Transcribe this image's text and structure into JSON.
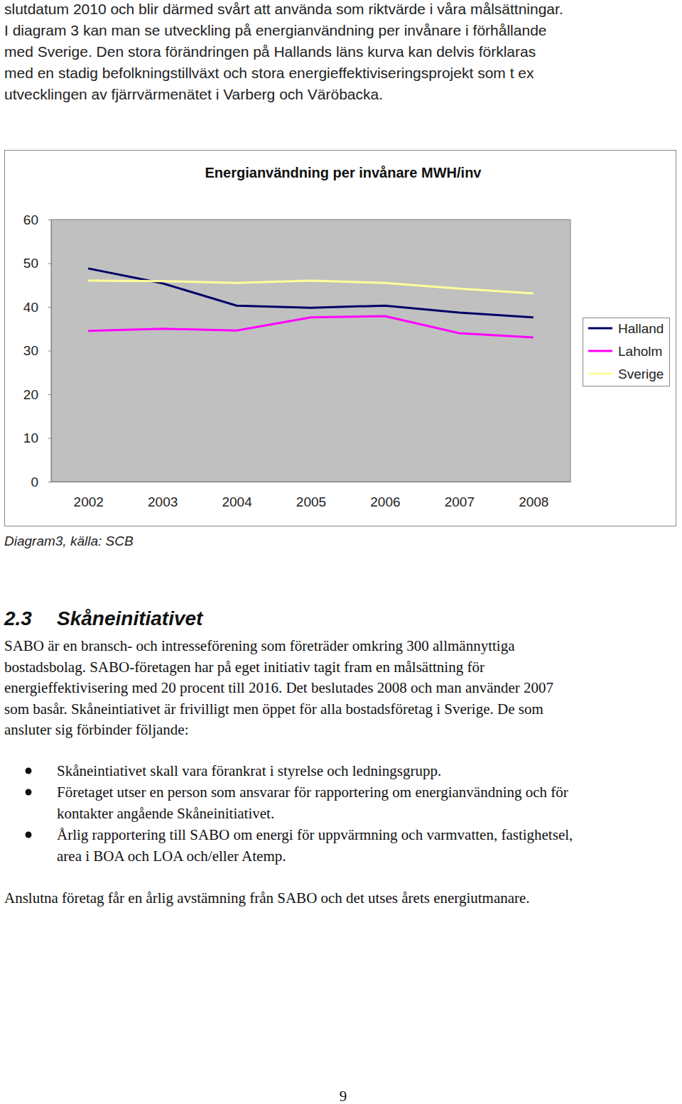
{
  "page": {
    "intro_lines": [
      "slutdatum 2010 och blir därmed svårt att använda som riktvärde i våra målsättningar.",
      "I diagram 3 kan man se utveckling på energianvändning per invånare i förhållande",
      "med Sverige. Den stora förändringen på Hallands läns kurva kan delvis förklaras",
      "med en stadig befolkningstillväxt och stora energieffektiviseringsprojekt som t ex",
      "utvecklingen av fjärrvärmenätet i Varberg och Väröbacka."
    ],
    "caption": "Diagram3, källa: SCB",
    "section": {
      "number": "2.3",
      "title": "Skåneinitiativet"
    },
    "paragraph_lines": [
      "SABO är en bransch- och intresseförening som företräder omkring 300 allmännyttiga",
      "bostadsbolag. SABO-företagen har på eget initiativ tagit fram en målsättning för",
      "energieffektivisering med 20 procent till 2016. Det beslutades 2008 och man använder 2007",
      "som basår. Skåneintiativet är frivilligt men öppet för alla bostadsföretag i Sverige. De som",
      "ansluter sig förbinder följande:"
    ],
    "bullets": [
      [
        "Skåneintiativet skall vara förankrat i styrelse och ledningsgrupp."
      ],
      [
        "Företaget utser en person som ansvarar för rapportering om energianvändning och för",
        "kontakter angående Skåneinitiativet."
      ],
      [
        "Årlig rapportering till SABO om energi för uppvärmning och varmvatten, fastighetsel,",
        "area i BOA och LOA och/eller Atemp."
      ]
    ],
    "closing": "Anslutna företag får en årlig avstämning från SABO och det utses årets energiutmanare.",
    "page_number": "9"
  },
  "chart_data": {
    "type": "line",
    "title": "Energianvändning per invånare MWH/inv",
    "categories": [
      "2002",
      "2003",
      "2004",
      "2005",
      "2006",
      "2007",
      "2008"
    ],
    "series": [
      {
        "name": "Halland",
        "color": "#000066",
        "values": [
          48.8,
          45.4,
          40.3,
          39.8,
          40.3,
          38.7,
          37.6
        ]
      },
      {
        "name": "Laholm",
        "color": "#ff00ff",
        "values": [
          34.5,
          35.0,
          34.6,
          37.6,
          37.9,
          34.0,
          33.0
        ]
      },
      {
        "name": "Sverige",
        "color": "#ffff99",
        "values": [
          46.0,
          45.9,
          45.5,
          46.0,
          45.5,
          44.2,
          43.1
        ]
      }
    ],
    "ylim": [
      0,
      60
    ],
    "yticks": [
      0,
      10,
      20,
      30,
      40,
      50,
      60
    ],
    "grid": false,
    "legend": "right"
  }
}
